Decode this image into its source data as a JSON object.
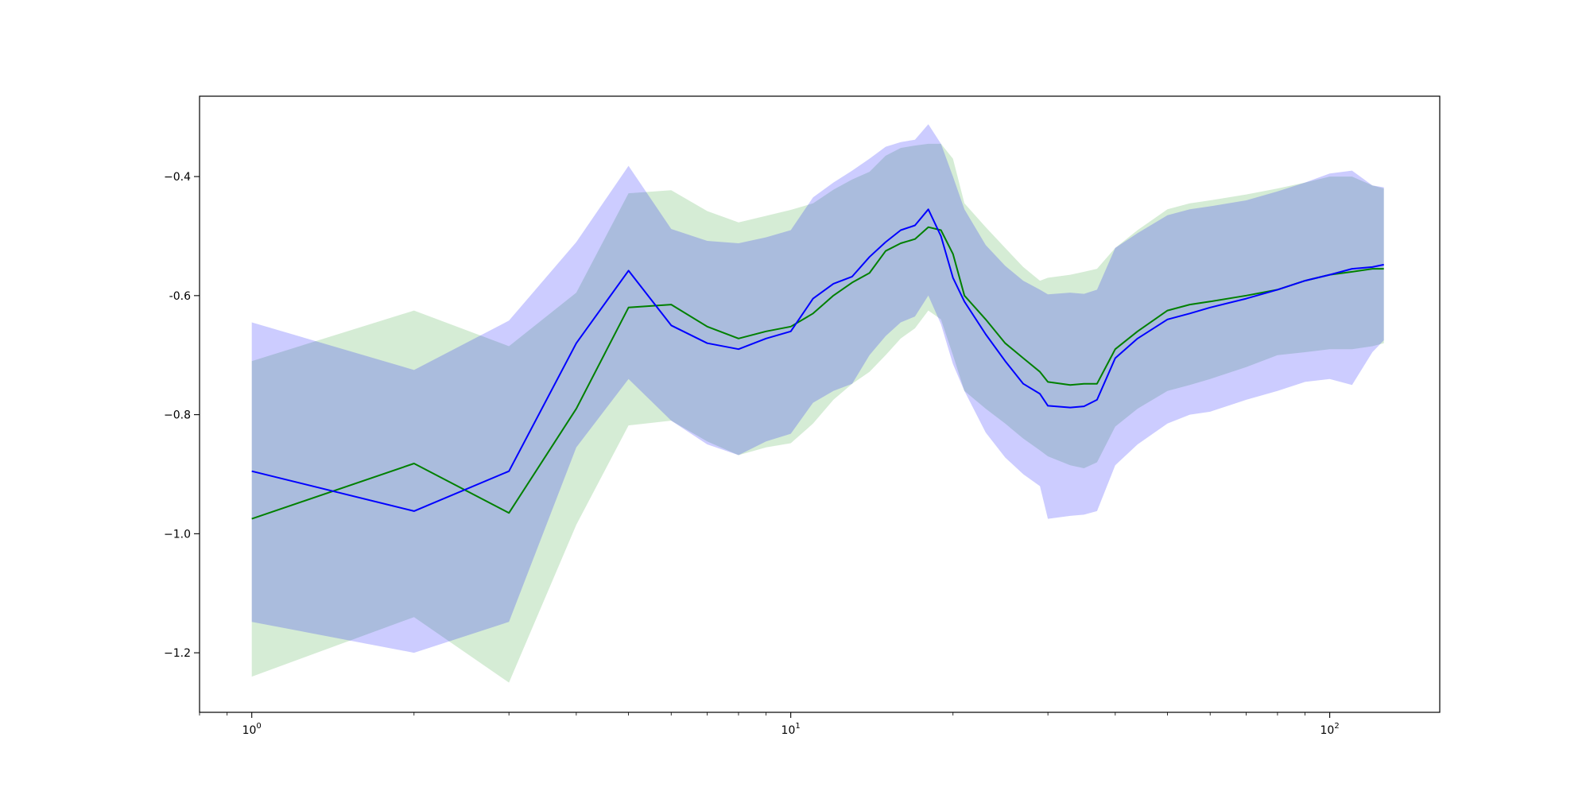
{
  "chart_data": {
    "type": "line",
    "title": "",
    "xlabel": "",
    "ylabel": "",
    "xscale": "log",
    "xlim": [
      0.8,
      160
    ],
    "ylim": [
      -1.3,
      -0.265
    ],
    "grid": false,
    "legend": "none",
    "xticks": [
      {
        "value": 1,
        "base": "10",
        "exp": "0"
      },
      {
        "value": 10,
        "base": "10",
        "exp": "1"
      },
      {
        "value": 100,
        "base": "10",
        "exp": "2"
      }
    ],
    "yticks": [
      {
        "value": -0.4,
        "label": "−0.4"
      },
      {
        "value": -0.6,
        "label": "-0.6"
      },
      {
        "value": -0.8,
        "label": "−0.8"
      },
      {
        "value": -1.0,
        "label": "−1.0"
      },
      {
        "value": -1.2,
        "label": "−1.2"
      }
    ],
    "series": [
      {
        "color": "#008000",
        "band_color": "#2ca02c",
        "points": [
          [
            1,
            -0.975,
            -1.24,
            -0.71
          ],
          [
            2,
            -0.882,
            -1.14,
            -0.625
          ],
          [
            3,
            -0.965,
            -1.25,
            -0.685
          ],
          [
            4,
            -0.79,
            -0.985,
            -0.595
          ],
          [
            5,
            -0.62,
            -0.818,
            -0.428
          ],
          [
            6,
            -0.615,
            -0.81,
            -0.423
          ],
          [
            7,
            -0.652,
            -0.845,
            -0.458
          ],
          [
            8,
            -0.672,
            -0.868,
            -0.477
          ],
          [
            9,
            -0.66,
            -0.855,
            -0.466
          ],
          [
            10,
            -0.652,
            -0.848,
            -0.456
          ],
          [
            11,
            -0.63,
            -0.815,
            -0.445
          ],
          [
            12,
            -0.6,
            -0.775,
            -0.422
          ],
          [
            13,
            -0.578,
            -0.748,
            -0.405
          ],
          [
            14,
            -0.562,
            -0.728,
            -0.392
          ],
          [
            15,
            -0.525,
            -0.7,
            -0.365
          ],
          [
            16,
            -0.512,
            -0.672,
            -0.352
          ],
          [
            17,
            -0.505,
            -0.655,
            -0.348
          ],
          [
            18,
            -0.485,
            -0.625,
            -0.345
          ],
          [
            19,
            -0.49,
            -0.64,
            -0.345
          ],
          [
            20,
            -0.53,
            -0.7,
            -0.37
          ],
          [
            21,
            -0.6,
            -0.76,
            -0.445
          ],
          [
            23,
            -0.64,
            -0.79,
            -0.485
          ],
          [
            25,
            -0.68,
            -0.815,
            -0.52
          ],
          [
            27,
            -0.705,
            -0.84,
            -0.552
          ],
          [
            29,
            -0.728,
            -0.86,
            -0.575
          ],
          [
            30,
            -0.745,
            -0.87,
            -0.57
          ],
          [
            33,
            -0.75,
            -0.885,
            -0.565
          ],
          [
            35,
            -0.748,
            -0.89,
            -0.56
          ],
          [
            37,
            -0.748,
            -0.88,
            -0.555
          ],
          [
            40,
            -0.69,
            -0.82,
            -0.52
          ],
          [
            44,
            -0.66,
            -0.79,
            -0.49
          ],
          [
            50,
            -0.625,
            -0.76,
            -0.455
          ],
          [
            55,
            -0.615,
            -0.75,
            -0.445
          ],
          [
            60,
            -0.61,
            -0.74,
            -0.44
          ],
          [
            70,
            -0.6,
            -0.72,
            -0.43
          ],
          [
            80,
            -0.59,
            -0.7,
            -0.42
          ],
          [
            90,
            -0.575,
            -0.695,
            -0.41
          ],
          [
            100,
            -0.565,
            -0.69,
            -0.4
          ],
          [
            110,
            -0.56,
            -0.69,
            -0.4
          ],
          [
            120,
            -0.555,
            -0.685,
            -0.415
          ],
          [
            126,
            -0.555,
            -0.68,
            -0.42
          ]
        ]
      },
      {
        "color": "#0000ff",
        "band_color": "#0000ff",
        "points": [
          [
            1,
            -0.895,
            -1.148,
            -0.645
          ],
          [
            2,
            -0.962,
            -1.2,
            -0.725
          ],
          [
            3,
            -0.895,
            -1.148,
            -0.642
          ],
          [
            4,
            -0.68,
            -0.855,
            -0.51
          ],
          [
            5,
            -0.558,
            -0.74,
            -0.382
          ],
          [
            6,
            -0.65,
            -0.81,
            -0.488
          ],
          [
            7,
            -0.68,
            -0.85,
            -0.508
          ],
          [
            8,
            -0.69,
            -0.868,
            -0.512
          ],
          [
            9,
            -0.672,
            -0.845,
            -0.502
          ],
          [
            10,
            -0.66,
            -0.832,
            -0.49
          ],
          [
            11,
            -0.605,
            -0.78,
            -0.435
          ],
          [
            12,
            -0.58,
            -0.76,
            -0.41
          ],
          [
            13,
            -0.568,
            -0.748,
            -0.39
          ],
          [
            14,
            -0.535,
            -0.7,
            -0.37
          ],
          [
            15,
            -0.51,
            -0.668,
            -0.35
          ],
          [
            16,
            -0.49,
            -0.645,
            -0.342
          ],
          [
            17,
            -0.482,
            -0.635,
            -0.338
          ],
          [
            18,
            -0.455,
            -0.6,
            -0.312
          ],
          [
            19,
            -0.5,
            -0.648,
            -0.345
          ],
          [
            20,
            -0.57,
            -0.715,
            -0.4
          ],
          [
            21,
            -0.61,
            -0.76,
            -0.455
          ],
          [
            23,
            -0.665,
            -0.83,
            -0.515
          ],
          [
            25,
            -0.71,
            -0.872,
            -0.55
          ],
          [
            27,
            -0.748,
            -0.9,
            -0.575
          ],
          [
            29,
            -0.765,
            -0.92,
            -0.59
          ],
          [
            30,
            -0.785,
            -0.975,
            -0.598
          ],
          [
            33,
            -0.788,
            -0.97,
            -0.595
          ],
          [
            35,
            -0.786,
            -0.968,
            -0.597
          ],
          [
            37,
            -0.775,
            -0.962,
            -0.59
          ],
          [
            40,
            -0.705,
            -0.885,
            -0.52
          ],
          [
            44,
            -0.672,
            -0.85,
            -0.495
          ],
          [
            50,
            -0.64,
            -0.815,
            -0.465
          ],
          [
            55,
            -0.63,
            -0.8,
            -0.455
          ],
          [
            60,
            -0.62,
            -0.795,
            -0.45
          ],
          [
            70,
            -0.605,
            -0.775,
            -0.44
          ],
          [
            80,
            -0.59,
            -0.76,
            -0.425
          ],
          [
            90,
            -0.575,
            -0.745,
            -0.41
          ],
          [
            100,
            -0.565,
            -0.74,
            -0.395
          ],
          [
            110,
            -0.555,
            -0.75,
            -0.39
          ],
          [
            120,
            -0.552,
            -0.695,
            -0.415
          ],
          [
            126,
            -0.548,
            -0.675,
            -0.418
          ]
        ]
      }
    ]
  }
}
